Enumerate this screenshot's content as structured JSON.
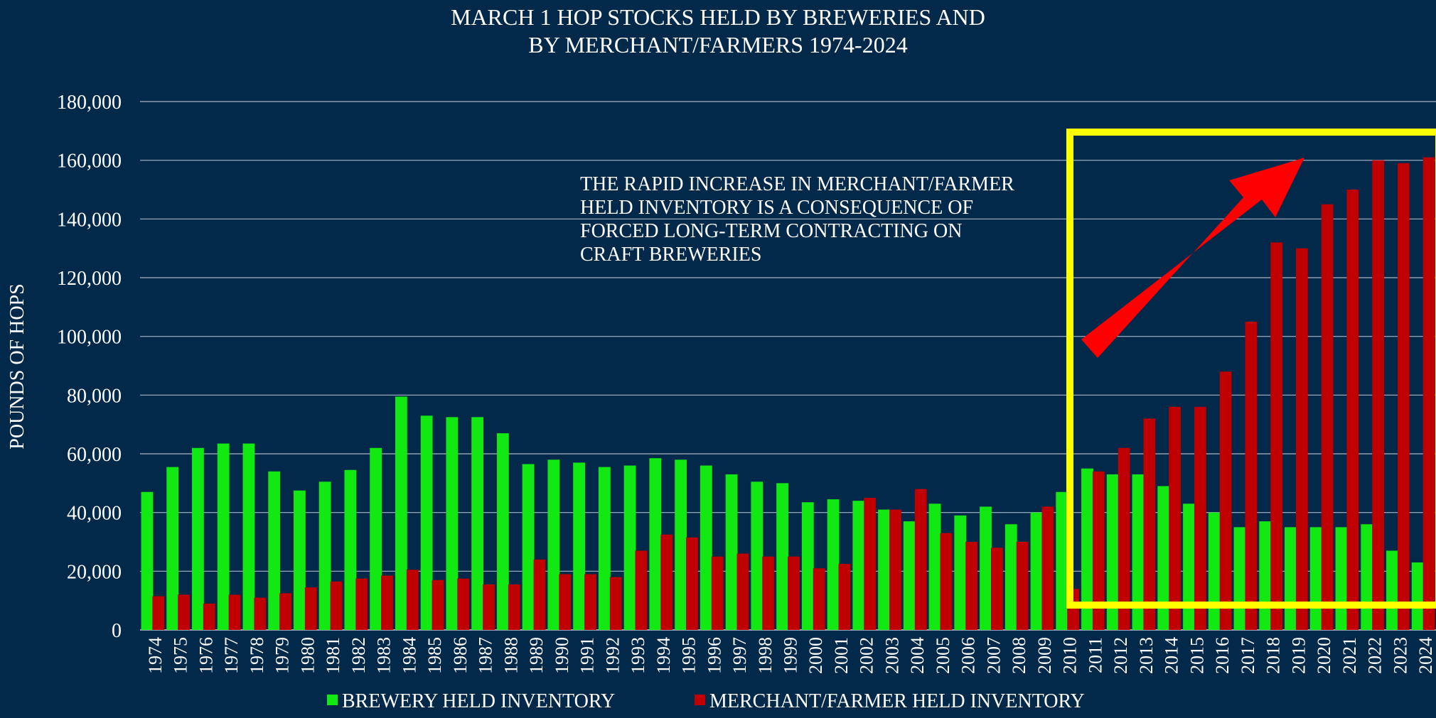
{
  "colors": {
    "background": "#02284a",
    "brewery": "#12e812",
    "merchant": "#c00000",
    "grid": "#c8d0dc",
    "highlight_box": "#ffff00",
    "arrow": "#ff0000",
    "text": "#ffffff"
  },
  "chart_data": {
    "type": "bar",
    "title_line1": "MARCH 1 HOP STOCKS HELD BY BREWERIES AND",
    "title_line2": "BY MERCHANT/FARMERS 1974-2024",
    "ylabel": "POUNDS OF HOPS",
    "xlabel": "",
    "ylim": [
      0,
      180000
    ],
    "yticks": [
      {
        "value": 0,
        "label": "0"
      },
      {
        "value": 20000,
        "label": "20,000"
      },
      {
        "value": 40000,
        "label": "40,000"
      },
      {
        "value": 60000,
        "label": "60,000"
      },
      {
        "value": 80000,
        "label": "80,000"
      },
      {
        "value": 100000,
        "label": "100,000"
      },
      {
        "value": 120000,
        "label": "120,000"
      },
      {
        "value": 140000,
        "label": "140,000"
      },
      {
        "value": 160000,
        "label": "160,000"
      },
      {
        "value": 180000,
        "label": "180,000"
      }
    ],
    "grid": true,
    "legend_position": "bottom",
    "categories": [
      "1974",
      "1975",
      "1976",
      "1977",
      "1978",
      "1979",
      "1980",
      "1981",
      "1982",
      "1983",
      "1984",
      "1985",
      "1986",
      "1987",
      "1988",
      "1989",
      "1990",
      "1991",
      "1992",
      "1993",
      "1994",
      "1995",
      "1996",
      "1997",
      "1998",
      "1999",
      "2000",
      "2001",
      "2002",
      "2003",
      "2004",
      "2005",
      "2006",
      "2007",
      "2008",
      "2009",
      "2010",
      "2011",
      "2012",
      "2013",
      "2014",
      "2015",
      "2016",
      "2017",
      "2018",
      "2019",
      "2020",
      "2021",
      "2022",
      "2023",
      "2024"
    ],
    "series": [
      {
        "name": "BREWERY HELD INVENTORY",
        "color": "#12e812",
        "values": [
          47000,
          55500,
          62000,
          63500,
          63500,
          54000,
          47500,
          50500,
          54500,
          62000,
          79500,
          73000,
          72500,
          72500,
          67000,
          56500,
          58000,
          57000,
          55500,
          56000,
          58500,
          58000,
          56000,
          53000,
          50500,
          50000,
          43500,
          44500,
          44000,
          41000,
          37000,
          43000,
          39000,
          42000,
          36000,
          40000,
          47000,
          55000,
          53000,
          53000,
          49000,
          43000,
          40000,
          35000,
          37000,
          35000,
          35000,
          35000,
          36000,
          27000,
          23000
        ]
      },
      {
        "name": "MERCHANT/FARMER HELD INVENTORY",
        "color": "#c00000",
        "values": [
          11500,
          12000,
          9000,
          12000,
          11000,
          12500,
          14500,
          16500,
          17500,
          18500,
          20500,
          17000,
          17500,
          15500,
          15500,
          24000,
          19000,
          19000,
          18000,
          27000,
          32500,
          31500,
          25000,
          26000,
          25000,
          25000,
          21000,
          22500,
          45000,
          41000,
          48000,
          33000,
          30000,
          28000,
          30000,
          42000,
          14000,
          54000,
          62000,
          72000,
          76000,
          76000,
          88000,
          105000,
          132000,
          130000,
          145000,
          150000,
          160000,
          159000,
          161000
        ]
      }
    ],
    "annotation_lines": [
      "THE RAPID INCREASE IN MERCHANT/FARMER",
      "HELD INVENTORY IS A CONSEQUENCE OF",
      "FORCED LONG-TERM CONTRACTING ON",
      "CRAFT BREWERIES"
    ]
  }
}
